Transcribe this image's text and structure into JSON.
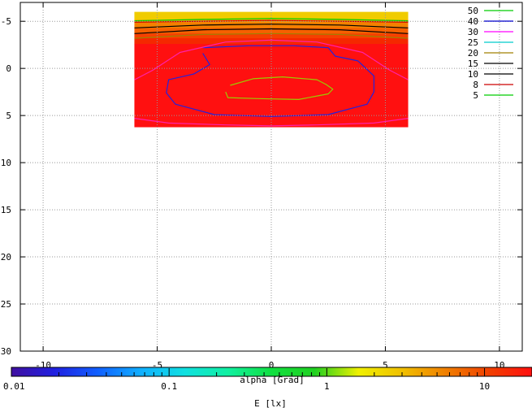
{
  "chart_data": {
    "type": "heatmap",
    "plot": {
      "xlim": [
        -11,
        11
      ],
      "ylim": [
        -7,
        30
      ],
      "y_inverted": true,
      "grid": true,
      "x_ticks": [
        -10,
        -5,
        0,
        5,
        10
      ],
      "x_tick_labels": [
        "-10",
        "-5",
        "0",
        "5",
        "10"
      ],
      "y_ticks": [
        -5,
        0,
        5,
        10,
        15,
        20,
        25,
        30
      ],
      "y_tick_labels": [
        "-5",
        "0",
        "5",
        "10",
        "15",
        "20",
        "25",
        "30"
      ],
      "filled_region": {
        "x": [
          -6,
          6
        ],
        "y": [
          -6,
          6.2
        ]
      },
      "contour_legend_placement": "top-right",
      "contour_legend": [
        {
          "label": "50",
          "color": "#00cc00"
        },
        {
          "label": "40",
          "color": "#0000cc"
        },
        {
          "label": "30",
          "color": "#ff00ff"
        },
        {
          "label": "25",
          "color": "#00cccc"
        },
        {
          "label": "20",
          "color": "#a08000"
        },
        {
          "label": "15",
          "color": "#000000"
        },
        {
          "label": "10",
          "color": "#000000"
        },
        {
          "label": "8",
          "color": "#cc0000"
        },
        {
          "label": "5",
          "color": "#00cc00"
        }
      ],
      "contours": [
        {
          "level": "40",
          "color": "#2222dd",
          "points": [
            [
              -3,
              -2.2
            ],
            [
              -1,
              -2.4
            ],
            [
              1,
              -2.4
            ],
            [
              2.5,
              -2.2
            ],
            [
              2.8,
              -1.3
            ],
            [
              3.8,
              -0.8
            ],
            [
              4.5,
              0.8
            ],
            [
              4.5,
              2.5
            ],
            [
              4.2,
              3.8
            ],
            [
              2.5,
              4.9
            ],
            [
              0,
              5.1
            ],
            [
              -2.5,
              4.9
            ],
            [
              -4.2,
              3.8
            ],
            [
              -4.6,
              2.6
            ],
            [
              -4.5,
              1.2
            ],
            [
              -3.4,
              0.6
            ],
            [
              -2.7,
              -0.4
            ],
            [
              -3,
              -1.6
            ]
          ]
        },
        {
          "level": "50",
          "color": "#99cc00",
          "points": [
            [
              -1.8,
              1.8
            ],
            [
              -0.8,
              1.1
            ],
            [
              0.5,
              0.9
            ],
            [
              2,
              1.2
            ],
            [
              2.4,
              1.7
            ],
            [
              2.7,
              2.2
            ],
            [
              2.5,
              2.7
            ],
            [
              1.2,
              3.3
            ],
            [
              -0.6,
              3.2
            ],
            [
              -1.9,
              3.1
            ],
            [
              -2.0,
              2.5
            ]
          ]
        },
        {
          "level": "30",
          "color": "#ff22aa",
          "points": [
            [
              -6,
              1.2
            ],
            [
              -5.2,
              0.2
            ],
            [
              -4,
              -1.7
            ],
            [
              -2,
              -2.8
            ],
            [
              0,
              -3.0
            ],
            [
              2,
              -2.8
            ],
            [
              4,
              -1.7
            ],
            [
              5.2,
              0.2
            ],
            [
              6,
              1.2
            ]
          ]
        },
        {
          "level": "30-bottom",
          "color": "#ff22aa",
          "points": [
            [
              -6,
              5.3
            ],
            [
              -4.5,
              5.8
            ],
            [
              -2,
              6.0
            ],
            [
              0,
              6.1
            ],
            [
              2,
              6.0
            ],
            [
              4.5,
              5.8
            ],
            [
              6,
              5.3
            ]
          ]
        },
        {
          "level": "20",
          "color": "#a08000",
          "points": [
            [
              -6,
              -3.2
            ],
            [
              -3,
              -3.6
            ],
            [
              0,
              -3.7
            ],
            [
              3,
              -3.6
            ],
            [
              6,
              -3.2
            ]
          ]
        },
        {
          "level": "15",
          "color": "#000000",
          "points": [
            [
              -6,
              -3.7
            ],
            [
              -3,
              -4.1
            ],
            [
              0,
              -4.2
            ],
            [
              3,
              -4.1
            ],
            [
              6,
              -3.7
            ]
          ]
        },
        {
          "level": "10",
          "color": "#000000",
          "points": [
            [
              -6,
              -4.3
            ],
            [
              -3,
              -4.6
            ],
            [
              0,
              -4.7
            ],
            [
              3,
              -4.6
            ],
            [
              6,
              -4.3
            ]
          ]
        },
        {
          "level": "8",
          "color": "#cc0000",
          "points": [
            [
              -6,
              -4.9
            ],
            [
              -3,
              -5.0
            ],
            [
              0,
              -5.1
            ],
            [
              3,
              -5.0
            ],
            [
              6,
              -4.9
            ]
          ]
        },
        {
          "level": "5",
          "color": "#00cc00",
          "points": [
            [
              -6,
              -5.05
            ],
            [
              -3,
              -5.2
            ],
            [
              0,
              -5.3
            ],
            [
              3,
              -5.2
            ],
            [
              6,
              -5.05
            ]
          ]
        }
      ],
      "bands": [
        {
          "y": [
            -6,
            -5.15
          ],
          "color": "#f0cc00"
        },
        {
          "y": [
            -5.15,
            -4.9
          ],
          "color": "#f5a000"
        },
        {
          "y": [
            -4.9,
            -4.3
          ],
          "color": "#f58000"
        },
        {
          "y": [
            -4.3,
            -3.7
          ],
          "color": "#f56000"
        },
        {
          "y": [
            -3.7,
            -3.2
          ],
          "color": "#f54000"
        },
        {
          "y": [
            -3.2,
            -2.6
          ],
          "color": "#f52800"
        },
        {
          "y": [
            -2.6,
            6.2
          ],
          "color": "#ff1010"
        }
      ]
    },
    "colorbar": {
      "scale": "log",
      "range": [
        0.01,
        20
      ],
      "tick_labels": [
        {
          "value": 0.01,
          "label": "0.01"
        },
        {
          "value": 0.1,
          "label": "0.1"
        },
        {
          "value": 1,
          "label": "1"
        },
        {
          "value": 10,
          "label": "10"
        }
      ],
      "inner_label": "alpha [Grad]",
      "xlabel": "E [lx]",
      "stops": [
        "#4010a0",
        "#2020e0",
        "#1060ff",
        "#10b0ff",
        "#10e0e0",
        "#10f0a0",
        "#10e040",
        "#20d020",
        "#f0f000",
        "#f0c000",
        "#f08000",
        "#f04000",
        "#ff1010"
      ]
    }
  }
}
